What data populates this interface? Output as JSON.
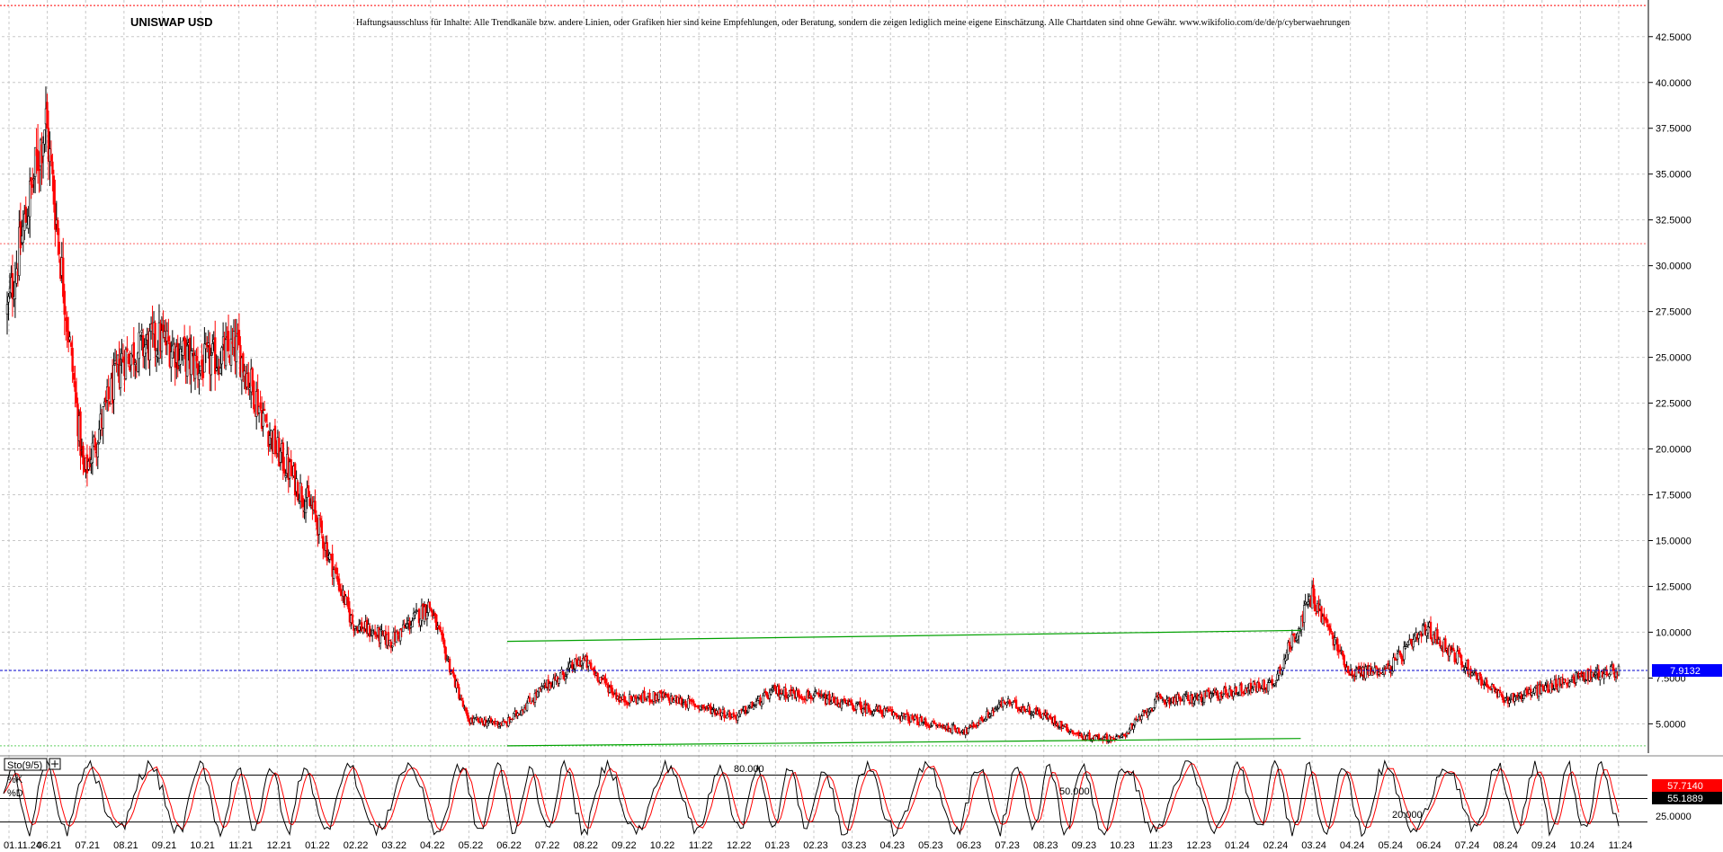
{
  "header": {
    "title": "UNISWAP USD",
    "disclaimer": "Haftungsausschluss für Inhalte: Alle Trendkanäle bzw. andere Linien, oder Grafiken hier sind keine Empfehlungen, oder Beratung, sondern die zeigen lediglich meine eigene Einschätzung. Alle Chartdaten sind ohne Gewähr.  www.wikifolio.com/de/de/p/cyberwaehrungen"
  },
  "colors": {
    "up": "#000000",
    "down": "#ff0000",
    "grid": "#c8c8c8",
    "trendline": "#00a000",
    "current_line": "#0000cc",
    "current_badge": "#0000ff",
    "k_badge": "#ff0000",
    "d_badge": "#000000"
  },
  "chart_data": [
    {
      "type": "candlestick",
      "title": "UNISWAP USD",
      "ylim": [
        3.4,
        44.5
      ],
      "yticks": [
        "42.5000",
        "40.0000",
        "37.5000",
        "35.0000",
        "32.5000",
        "30.0000",
        "27.5000",
        "25.0000",
        "22.5000",
        "20.0000",
        "17.5000",
        "15.0000",
        "12.5000",
        "10.0000",
        "7.5000",
        "5.0000"
      ],
      "ytick_values": [
        42.5,
        40,
        37.5,
        35,
        32.5,
        30,
        27.5,
        25,
        22.5,
        20,
        17.5,
        15,
        12.5,
        10,
        7.5,
        5
      ],
      "x_labels": [
        "01.11.24",
        "06.21",
        "07.21",
        "08.21",
        "09.21",
        "10.21",
        "11.21",
        "12.21",
        "01.22",
        "02.22",
        "03.22",
        "04.22",
        "05.22",
        "06.22",
        "07.22",
        "08.22",
        "09.22",
        "10.22",
        "11.22",
        "12.22",
        "01.23",
        "02.23",
        "03.23",
        "04.23",
        "05.23",
        "06.23",
        "07.23",
        "08.23",
        "09.23",
        "10.23",
        "11.23",
        "12.23",
        "01.24",
        "02.24",
        "03.24",
        "04.24",
        "05.24",
        "06.24",
        "07.24",
        "08.24",
        "09.24",
        "10.24",
        "11.24"
      ],
      "monthly_close": [
        27.5,
        38.0,
        18.5,
        25.0,
        26.0,
        24.5,
        25.5,
        20.0,
        16.5,
        10.5,
        9.5,
        11.5,
        5.2,
        5.0,
        7.0,
        8.5,
        6.3,
        6.5,
        6.0,
        5.4,
        6.8,
        6.5,
        6.0,
        5.6,
        5.0,
        4.6,
        6.2,
        5.5,
        4.3,
        4.2,
        6.3,
        6.4,
        6.8,
        7.2,
        12.0,
        7.8,
        8.0,
        10.2,
        8.2,
        6.3,
        6.9,
        7.6,
        7.91
      ],
      "current_price": "7.9132",
      "current_value": 7.9132,
      "resistance_level": 31.2,
      "upper_level": 44.2,
      "support_level": 3.8,
      "trend_channel": [
        {
          "from": [
            "06.22",
            9.5
          ],
          "to": [
            "02.24",
            10.1
          ]
        },
        {
          "from": [
            "06.22",
            3.8
          ],
          "to": [
            "02.24",
            4.2
          ]
        }
      ]
    },
    {
      "type": "line",
      "title": "Sto(9/5)",
      "series": [
        {
          "name": "%K"
        },
        {
          "name": "%D"
        }
      ],
      "ylim": [
        0,
        100
      ],
      "levels": [
        "80.000",
        "50.000",
        "20.000"
      ],
      "level_values": [
        80,
        50,
        20
      ],
      "right_axis_label": "25.0000",
      "k_value": "57.7140",
      "d_value": "55.1889"
    }
  ]
}
